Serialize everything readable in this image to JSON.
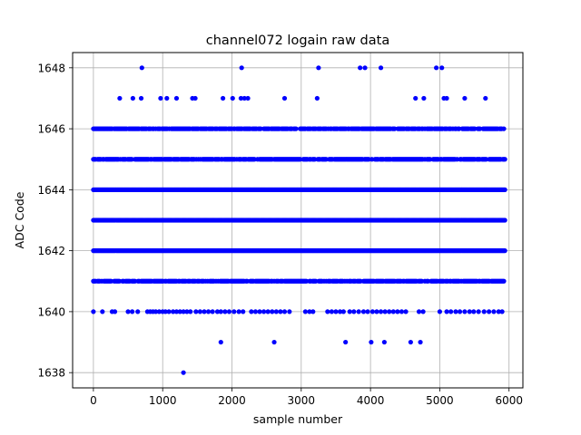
{
  "chart_data": {
    "type": "scatter",
    "title": "channel072 logain raw data",
    "xlabel": "sample number",
    "ylabel": "ADC Code",
    "xlim": [
      -300,
      6200
    ],
    "ylim": [
      1637.5,
      1648.5
    ],
    "xticks": [
      0,
      1000,
      2000,
      3000,
      4000,
      5000,
      6000
    ],
    "yticks": [
      1638,
      1640,
      1642,
      1644,
      1646,
      1648
    ],
    "grid": true,
    "series": [
      {
        "color": "#0000ff",
        "marker": "circle",
        "band_levels": [
          1641,
          1642,
          1643,
          1644,
          1645,
          1646
        ],
        "band_x_range": [
          0,
          5940
        ],
        "sparse_points": [
          [
            700,
            1648
          ],
          [
            2140,
            1648
          ],
          [
            3250,
            1648
          ],
          [
            3850,
            1648
          ],
          [
            3920,
            1648
          ],
          [
            4150,
            1648
          ],
          [
            4950,
            1648
          ],
          [
            5030,
            1648
          ],
          [
            380,
            1647
          ],
          [
            570,
            1647
          ],
          [
            690,
            1647
          ],
          [
            970,
            1647
          ],
          [
            1060,
            1647
          ],
          [
            1200,
            1647
          ],
          [
            1430,
            1647
          ],
          [
            1470,
            1647
          ],
          [
            1870,
            1647
          ],
          [
            2010,
            1647
          ],
          [
            2130,
            1647
          ],
          [
            2180,
            1647
          ],
          [
            2230,
            1647
          ],
          [
            2760,
            1647
          ],
          [
            3230,
            1647
          ],
          [
            4650,
            1647
          ],
          [
            4770,
            1647
          ],
          [
            5060,
            1647
          ],
          [
            5100,
            1647
          ],
          [
            5360,
            1647
          ],
          [
            5660,
            1647
          ],
          [
            0,
            1640
          ],
          [
            130,
            1640
          ],
          [
            270,
            1640
          ],
          [
            310,
            1640
          ],
          [
            500,
            1640
          ],
          [
            560,
            1640
          ],
          [
            640,
            1640
          ],
          [
            780,
            1640
          ],
          [
            820,
            1640
          ],
          [
            860,
            1640
          ],
          [
            900,
            1640
          ],
          [
            950,
            1640
          ],
          [
            1000,
            1640
          ],
          [
            1040,
            1640
          ],
          [
            1090,
            1640
          ],
          [
            1150,
            1640
          ],
          [
            1200,
            1640
          ],
          [
            1250,
            1640
          ],
          [
            1300,
            1640
          ],
          [
            1350,
            1640
          ],
          [
            1400,
            1640
          ],
          [
            1480,
            1640
          ],
          [
            1540,
            1640
          ],
          [
            1600,
            1640
          ],
          [
            1660,
            1640
          ],
          [
            1720,
            1640
          ],
          [
            1790,
            1640
          ],
          [
            1840,
            1640
          ],
          [
            1900,
            1640
          ],
          [
            1960,
            1640
          ],
          [
            2030,
            1640
          ],
          [
            2100,
            1640
          ],
          [
            2160,
            1640
          ],
          [
            2280,
            1640
          ],
          [
            2340,
            1640
          ],
          [
            2400,
            1640
          ],
          [
            2460,
            1640
          ],
          [
            2520,
            1640
          ],
          [
            2580,
            1640
          ],
          [
            2640,
            1640
          ],
          [
            2700,
            1640
          ],
          [
            2760,
            1640
          ],
          [
            2830,
            1640
          ],
          [
            3060,
            1640
          ],
          [
            3120,
            1640
          ],
          [
            3170,
            1640
          ],
          [
            3380,
            1640
          ],
          [
            3440,
            1640
          ],
          [
            3500,
            1640
          ],
          [
            3560,
            1640
          ],
          [
            3610,
            1640
          ],
          [
            3700,
            1640
          ],
          [
            3760,
            1640
          ],
          [
            3830,
            1640
          ],
          [
            3900,
            1640
          ],
          [
            3960,
            1640
          ],
          [
            4030,
            1640
          ],
          [
            4090,
            1640
          ],
          [
            4150,
            1640
          ],
          [
            4210,
            1640
          ],
          [
            4270,
            1640
          ],
          [
            4330,
            1640
          ],
          [
            4390,
            1640
          ],
          [
            4450,
            1640
          ],
          [
            4510,
            1640
          ],
          [
            4700,
            1640
          ],
          [
            4760,
            1640
          ],
          [
            5000,
            1640
          ],
          [
            5100,
            1640
          ],
          [
            5160,
            1640
          ],
          [
            5230,
            1640
          ],
          [
            5290,
            1640
          ],
          [
            5360,
            1640
          ],
          [
            5430,
            1640
          ],
          [
            5490,
            1640
          ],
          [
            5560,
            1640
          ],
          [
            5640,
            1640
          ],
          [
            5710,
            1640
          ],
          [
            5780,
            1640
          ],
          [
            5850,
            1640
          ],
          [
            5900,
            1640
          ],
          [
            1840,
            1639
          ],
          [
            2610,
            1639
          ],
          [
            3640,
            1639
          ],
          [
            4010,
            1639
          ],
          [
            4200,
            1639
          ],
          [
            4580,
            1639
          ],
          [
            4720,
            1639
          ],
          [
            1300,
            1638
          ]
        ]
      }
    ]
  }
}
